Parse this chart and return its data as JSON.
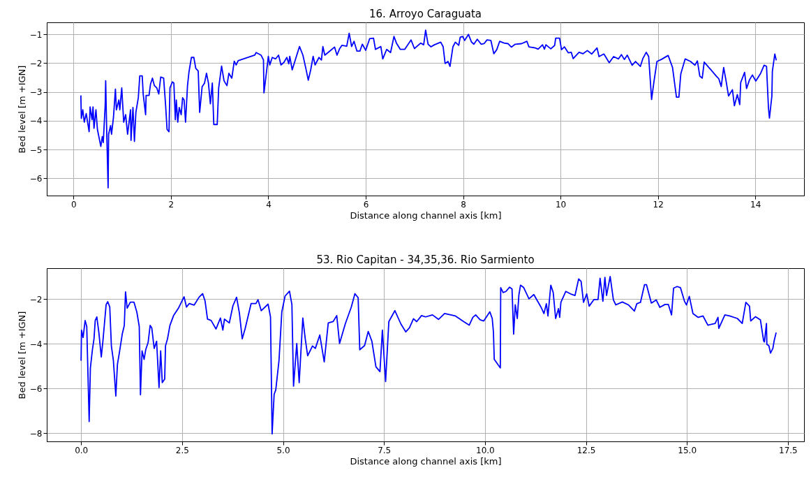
{
  "chart_data": [
    {
      "type": "line",
      "title": "16. Arroyo Caraguata",
      "xlabel": "Distance along channel axis [km]",
      "ylabel": "Bed level [m +IGN]",
      "color": "#0000ff",
      "grid": true,
      "line_style": "solid",
      "xlim": [
        -0.55,
        15.0
      ],
      "ylim": [
        -6.6,
        -0.58
      ],
      "xticks": [
        0,
        2,
        4,
        6,
        8,
        10,
        12,
        14
      ],
      "yticks": [
        -6,
        -5,
        -4,
        -3,
        -2,
        -1
      ],
      "x": [
        0.15,
        0.16,
        0.19,
        0.22,
        0.26,
        0.32,
        0.34,
        0.38,
        0.4,
        0.42,
        0.46,
        0.49,
        0.56,
        0.59,
        0.61,
        0.65,
        0.66,
        0.68,
        0.71,
        0.72,
        0.76,
        0.78,
        0.82,
        0.86,
        0.88,
        0.93,
        0.95,
        0.99,
        1.03,
        1.07,
        1.11,
        1.17,
        1.18,
        1.22,
        1.25,
        1.28,
        1.33,
        1.36,
        1.41,
        1.43,
        1.48,
        1.49,
        1.55,
        1.58,
        1.62,
        1.66,
        1.71,
        1.75,
        1.79,
        1.85,
        1.89,
        1.92,
        1.96,
        1.98,
        2.03,
        2.06,
        2.09,
        2.11,
        2.14,
        2.17,
        2.21,
        2.24,
        2.27,
        2.3,
        2.34,
        2.37,
        2.42,
        2.47,
        2.51,
        2.56,
        2.59,
        2.64,
        2.69,
        2.73,
        2.77,
        2.81,
        2.85,
        2.88,
        2.95,
        2.98,
        3.04,
        3.09,
        3.15,
        3.19,
        3.25,
        3.3,
        3.34,
        3.38,
        3.72,
        3.75,
        3.85,
        3.9,
        3.91,
        3.94,
        4.0,
        4.03,
        4.08,
        4.15,
        4.21,
        4.26,
        4.32,
        4.38,
        4.42,
        4.44,
        4.49,
        4.64,
        4.71,
        4.77,
        4.82,
        4.87,
        4.92,
        4.96,
        5.04,
        5.09,
        5.12,
        5.16,
        5.26,
        5.36,
        5.41,
        5.46,
        5.51,
        5.61,
        5.66,
        5.71,
        5.76,
        5.82,
        5.88,
        5.93,
        6.0,
        6.08,
        6.16,
        6.2,
        6.31,
        6.35,
        6.43,
        6.51,
        6.58,
        6.63,
        6.71,
        6.8,
        6.93,
        7.0,
        7.13,
        7.19,
        7.23,
        7.28,
        7.34,
        7.41,
        7.54,
        7.59,
        7.63,
        7.69,
        7.73,
        7.79,
        7.84,
        7.91,
        7.94,
        7.99,
        8.03,
        8.11,
        8.17,
        8.22,
        8.29,
        8.37,
        8.43,
        8.49,
        8.57,
        8.63,
        8.69,
        8.75,
        8.84,
        8.92,
        8.99,
        9.07,
        9.2,
        9.31,
        9.35,
        9.48,
        9.54,
        9.63,
        9.67,
        9.7,
        9.8,
        9.88,
        9.9,
        9.98,
        10.02,
        10.08,
        10.16,
        10.22,
        10.26,
        10.38,
        10.46,
        10.55,
        10.64,
        10.75,
        10.79,
        10.89,
        11.0,
        11.09,
        11.19,
        11.25,
        11.31,
        11.37,
        11.47,
        11.54,
        11.64,
        11.69,
        11.76,
        11.81,
        11.87,
        11.92,
        11.98,
        12.07,
        12.21,
        12.3,
        12.38,
        12.43,
        12.47,
        12.56,
        12.67,
        12.76,
        12.81,
        12.86,
        12.91,
        12.95,
        13.2,
        13.25,
        13.3,
        13.35,
        13.4,
        13.45,
        13.53,
        13.57,
        13.63,
        13.68,
        13.7,
        13.78,
        13.82,
        13.88,
        13.94,
        14.01,
        14.11,
        14.18,
        14.23,
        14.27,
        14.29,
        14.34,
        14.35,
        14.4,
        14.43
      ],
      "values": [
        -3.12,
        -3.92,
        -3.62,
        -4.05,
        -3.75,
        -4.38,
        -3.52,
        -3.96,
        -3.52,
        -4.26,
        -3.62,
        -4.3,
        -4.89,
        -4.55,
        -4.76,
        -3.45,
        -2.61,
        -4.3,
        -6.33,
        -4.47,
        -4.17,
        -4.47,
        -3.88,
        -2.9,
        -3.62,
        -3.28,
        -3.62,
        -2.86,
        -4.05,
        -3.79,
        -4.47,
        -3.62,
        -4.68,
        -3.54,
        -4.72,
        -3.71,
        -3.2,
        -2.44,
        -2.44,
        -3.07,
        -3.79,
        -3.12,
        -3.12,
        -2.73,
        -2.52,
        -2.78,
        -2.86,
        -3.07,
        -2.48,
        -2.52,
        -3.45,
        -4.3,
        -4.38,
        -2.86,
        -2.65,
        -2.69,
        -3.96,
        -3.28,
        -4.05,
        -3.54,
        -3.79,
        -3.2,
        -3.28,
        -4.05,
        -2.78,
        -2.31,
        -1.8,
        -1.8,
        -2.18,
        -2.27,
        -3.71,
        -2.82,
        -2.69,
        -2.35,
        -2.69,
        -3.41,
        -2.69,
        -4.13,
        -4.13,
        -2.86,
        -2.1,
        -2.61,
        -2.78,
        -2.35,
        -2.52,
        -1.93,
        -2.06,
        -1.91,
        -1.72,
        -1.63,
        -1.72,
        -1.89,
        -3.03,
        -2.61,
        -1.76,
        -2.06,
        -1.8,
        -1.85,
        -1.72,
        -2.06,
        -1.97,
        -1.8,
        -2.02,
        -1.76,
        -2.23,
        -1.42,
        -1.72,
        -2.18,
        -2.59,
        -2.23,
        -1.76,
        -2.06,
        -1.8,
        -1.89,
        -1.42,
        -1.72,
        -1.58,
        -1.44,
        -1.72,
        -1.51,
        -1.38,
        -1.41,
        -0.96,
        -1.42,
        -1.24,
        -1.58,
        -1.58,
        -1.34,
        -1.55,
        -1.15,
        -1.13,
        -1.52,
        -1.42,
        -1.85,
        -1.52,
        -1.63,
        -1.07,
        -1.3,
        -1.52,
        -1.52,
        -1.19,
        -1.49,
        -1.3,
        -1.36,
        -0.85,
        -1.34,
        -1.43,
        -1.36,
        -1.27,
        -1.43,
        -2.01,
        -1.94,
        -2.11,
        -1.43,
        -1.27,
        -1.38,
        -1.1,
        -1.07,
        -1.21,
        -1.0,
        -1.26,
        -1.34,
        -1.17,
        -1.34,
        -1.32,
        -1.19,
        -1.21,
        -1.67,
        -1.53,
        -1.24,
        -1.3,
        -1.32,
        -1.44,
        -1.34,
        -1.32,
        -1.24,
        -1.43,
        -1.47,
        -1.51,
        -1.36,
        -1.51,
        -1.36,
        -1.5,
        -1.38,
        -1.13,
        -1.13,
        -1.53,
        -1.43,
        -1.64,
        -1.62,
        -1.84,
        -1.62,
        -1.67,
        -1.56,
        -1.68,
        -1.47,
        -1.77,
        -1.68,
        -1.98,
        -1.77,
        -1.85,
        -1.7,
        -1.87,
        -1.72,
        -2.07,
        -1.94,
        -2.11,
        -1.84,
        -1.62,
        -1.77,
        -3.26,
        -2.62,
        -1.94,
        -1.87,
        -1.73,
        -2.15,
        -3.18,
        -3.18,
        -2.37,
        -1.85,
        -1.94,
        -2.07,
        -1.92,
        -2.45,
        -2.52,
        -1.96,
        -2.45,
        -2.54,
        -2.81,
        -2.15,
        -2.62,
        -3.14,
        -2.92,
        -3.48,
        -3.09,
        -3.44,
        -2.67,
        -2.32,
        -2.88,
        -2.58,
        -2.41,
        -2.62,
        -2.35,
        -2.07,
        -2.11,
        -3.56,
        -3.91,
        -3.14,
        -2.28,
        -1.68,
        -1.9
      ]
    },
    {
      "type": "line",
      "title": "53. Rio Capitan - 34,35,36. Rio Sarmiento",
      "xlabel": "Distance along channel axis [km]",
      "ylabel": "Bed level [m +IGN]",
      "color": "#0000ff",
      "grid": true,
      "line_style": "solid",
      "xlim": [
        -0.85,
        17.9
      ],
      "ylim": [
        -8.36,
        -0.61
      ],
      "xticks": [
        {
          "value": 0,
          "label": "0.0"
        },
        {
          "value": 2.5,
          "label": "2.5"
        },
        {
          "value": 5,
          "label": "5.0"
        },
        {
          "value": 7.5,
          "label": "7.5"
        },
        {
          "value": 10,
          "label": "10.0"
        },
        {
          "value": 12.5,
          "label": "12.5"
        },
        {
          "value": 15,
          "label": "15.0"
        },
        {
          "value": 17.5,
          "label": "17.5"
        }
      ],
      "yticks": [
        -8,
        -6,
        -4,
        -2
      ],
      "x": [
        0.0,
        0.01,
        0.05,
        0.1,
        0.14,
        0.2,
        0.23,
        0.28,
        0.32,
        0.35,
        0.39,
        0.44,
        0.5,
        0.54,
        0.62,
        0.66,
        0.71,
        0.75,
        0.8,
        0.86,
        0.9,
        0.95,
        1.02,
        1.07,
        1.1,
        1.14,
        1.22,
        1.31,
        1.38,
        1.44,
        1.47,
        1.51,
        1.56,
        1.6,
        1.66,
        1.71,
        1.75,
        1.81,
        1.87,
        1.93,
        1.97,
        2.01,
        2.07,
        2.09,
        2.14,
        2.2,
        2.29,
        2.41,
        2.55,
        2.61,
        2.68,
        2.8,
        2.92,
        3.01,
        3.07,
        3.13,
        3.22,
        3.34,
        3.45,
        3.51,
        3.55,
        3.67,
        3.76,
        3.85,
        3.92,
        3.99,
        4.06,
        4.21,
        4.33,
        4.38,
        4.46,
        4.63,
        4.69,
        4.73,
        4.78,
        4.82,
        4.9,
        4.97,
        5.05,
        5.16,
        5.22,
        5.26,
        5.34,
        5.4,
        5.49,
        5.55,
        5.61,
        5.73,
        5.8,
        5.91,
        6.02,
        6.12,
        6.24,
        6.33,
        6.4,
        6.54,
        6.69,
        6.78,
        6.86,
        6.9,
        7.02,
        7.11,
        7.2,
        7.3,
        7.4,
        7.46,
        7.54,
        7.62,
        7.77,
        7.92,
        8.04,
        8.13,
        8.23,
        8.31,
        8.43,
        8.53,
        8.7,
        8.85,
        9.0,
        9.27,
        9.48,
        9.61,
        9.7,
        9.77,
        9.88,
        9.97,
        10.12,
        10.18,
        10.21,
        10.23,
        10.38,
        10.39,
        10.45,
        10.52,
        10.61,
        10.67,
        10.71,
        10.75,
        10.8,
        10.84,
        10.88,
        10.96,
        11.09,
        11.21,
        11.39,
        11.46,
        11.52,
        11.56,
        11.63,
        11.69,
        11.75,
        11.82,
        11.85,
        11.88,
        12.0,
        12.12,
        12.23,
        12.32,
        12.38,
        12.44,
        12.52,
        12.58,
        12.7,
        12.8,
        12.85,
        12.92,
        12.97,
        13.01,
        13.1,
        13.18,
        13.24,
        13.4,
        13.55,
        13.7,
        13.76,
        13.85,
        13.95,
        14.0,
        14.12,
        14.24,
        14.33,
        14.46,
        14.54,
        14.62,
        14.67,
        14.76,
        14.84,
        14.94,
        14.99,
        15.06,
        15.15,
        15.28,
        15.4,
        15.52,
        15.7,
        15.77,
        15.79,
        15.94,
        16.06,
        16.25,
        16.37,
        16.46,
        16.55,
        16.58,
        16.7,
        16.82,
        16.9,
        16.92,
        16.97,
        16.98,
        17.03,
        17.07,
        17.13,
        17.16,
        17.21
      ],
      "values": [
        -4.75,
        -3.38,
        -3.71,
        -2.95,
        -3.22,
        -7.47,
        -5.08,
        -4.26,
        -3.77,
        -2.95,
        -2.79,
        -3.49,
        -4.58,
        -3.88,
        -2.24,
        -2.11,
        -2.35,
        -4.09,
        -4.75,
        -6.33,
        -4.91,
        -4.37,
        -3.55,
        -3.17,
        -1.67,
        -2.4,
        -2.13,
        -2.13,
        -2.57,
        -3.22,
        -6.27,
        -4.31,
        -4.69,
        -4.26,
        -3.93,
        -3.17,
        -3.28,
        -4.2,
        -3.88,
        -5.95,
        -4.31,
        -5.73,
        -5.57,
        -4.09,
        -3.77,
        -3.17,
        -2.73,
        -2.4,
        -1.89,
        -2.35,
        -2.19,
        -2.26,
        -1.91,
        -1.75,
        -2.08,
        -2.89,
        -2.95,
        -3.33,
        -2.84,
        -3.38,
        -2.89,
        -3.06,
        -2.29,
        -1.91,
        -2.62,
        -3.77,
        -3.33,
        -2.19,
        -2.19,
        -2.02,
        -2.51,
        -2.22,
        -2.79,
        -8.02,
        -6.25,
        -6.06,
        -4.75,
        -2.57,
        -1.86,
        -1.64,
        -2.24,
        -5.89,
        -3.98,
        -5.73,
        -2.84,
        -3.77,
        -4.53,
        -4.09,
        -4.2,
        -3.6,
        -4.8,
        -3.06,
        -3.0,
        -2.73,
        -3.98,
        -3.11,
        -2.35,
        -1.75,
        -1.93,
        -4.26,
        -4.07,
        -3.44,
        -3.88,
        -5.02,
        -5.24,
        -3.38,
        -5.68,
        -3.0,
        -2.51,
        -3.11,
        -3.46,
        -3.28,
        -2.87,
        -3.0,
        -2.73,
        -2.79,
        -2.7,
        -2.9,
        -2.64,
        -2.75,
        -3.01,
        -3.16,
        -2.81,
        -2.7,
        -2.92,
        -2.97,
        -2.56,
        -2.86,
        -3.47,
        -4.69,
        -5.07,
        -1.48,
        -1.7,
        -1.65,
        -1.46,
        -1.54,
        -3.56,
        -2.25,
        -2.86,
        -1.81,
        -1.37,
        -1.48,
        -1.98,
        -1.79,
        -2.36,
        -2.64,
        -2.2,
        -2.75,
        -1.37,
        -1.7,
        -2.86,
        -2.42,
        -2.81,
        -2.14,
        -1.65,
        -1.76,
        -1.83,
        -1.09,
        -1.2,
        -2.14,
        -1.76,
        -2.31,
        -2.01,
        -2.01,
        -1.06,
        -2.09,
        -1.02,
        -1.83,
        -0.98,
        -2.03,
        -2.25,
        -2.12,
        -2.25,
        -2.53,
        -2.2,
        -2.14,
        -1.35,
        -1.35,
        -2.17,
        -2.03,
        -2.36,
        -2.23,
        -2.23,
        -2.7,
        -1.5,
        -1.43,
        -1.48,
        -2.09,
        -2.25,
        -1.87,
        -2.64,
        -2.81,
        -2.75,
        -3.16,
        -3.08,
        -2.81,
        -3.3,
        -2.7,
        -2.75,
        -2.86,
        -3.08,
        -2.14,
        -2.31,
        -2.97,
        -2.78,
        -2.92,
        -3.86,
        -3.91,
        -3.08,
        -4.02,
        -4.08,
        -4.41,
        -4.19,
        -3.86,
        -3.49
      ]
    }
  ]
}
